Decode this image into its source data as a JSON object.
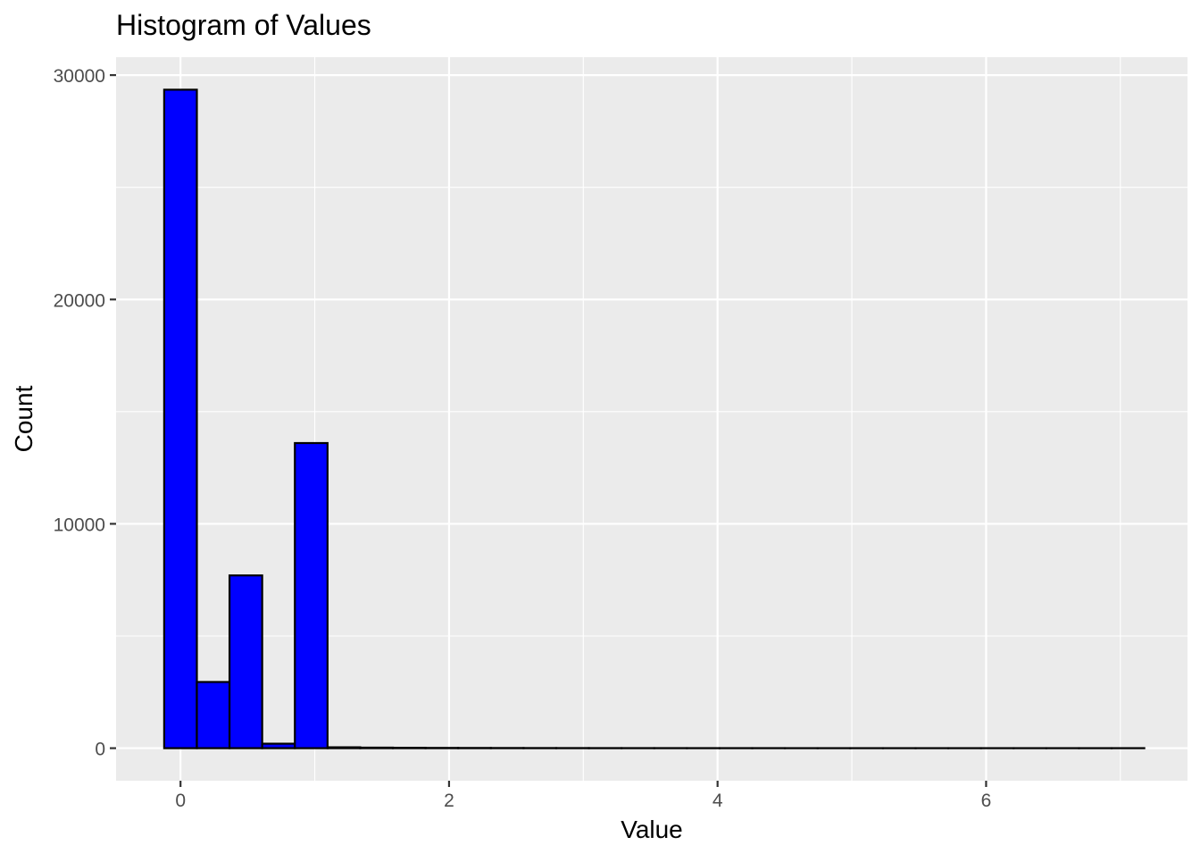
{
  "chart_data": {
    "type": "bar",
    "title": "Histogram of Values",
    "xlabel": "Value",
    "ylabel": "Count",
    "xlim": [
      -0.48,
      7.5
    ],
    "ylim": [
      -1450,
      30800
    ],
    "x_ticks": [
      0,
      2,
      4,
      6
    ],
    "y_ticks": [
      0,
      10000,
      20000,
      30000
    ],
    "grid": true,
    "bin_width": 0.2433,
    "bins": [
      {
        "x0": -0.1217,
        "x1": 0.1217,
        "count": 29350
      },
      {
        "x0": 0.1217,
        "x1": 0.365,
        "count": 2950
      },
      {
        "x0": 0.365,
        "x1": 0.6083,
        "count": 7700
      },
      {
        "x0": 0.6083,
        "x1": 0.8517,
        "count": 200
      },
      {
        "x0": 0.8517,
        "x1": 1.095,
        "count": 13600
      },
      {
        "x0": 1.095,
        "x1": 1.3383,
        "count": 40
      },
      {
        "x0": 1.3383,
        "x1": 1.5817,
        "count": 25
      },
      {
        "x0": 1.5817,
        "x1": 1.825,
        "count": 18
      },
      {
        "x0": 1.825,
        "x1": 2.0683,
        "count": 12
      },
      {
        "x0": 2.0683,
        "x1": 2.3117,
        "count": 10
      },
      {
        "x0": 2.3117,
        "x1": 2.555,
        "count": 8
      },
      {
        "x0": 2.555,
        "x1": 2.7983,
        "count": 6
      },
      {
        "x0": 2.7983,
        "x1": 3.0417,
        "count": 5
      },
      {
        "x0": 3.0417,
        "x1": 3.285,
        "count": 4
      },
      {
        "x0": 3.285,
        "x1": 3.5283,
        "count": 3
      },
      {
        "x0": 3.5283,
        "x1": 3.7717,
        "count": 3
      },
      {
        "x0": 3.7717,
        "x1": 4.015,
        "count": 2
      },
      {
        "x0": 4.015,
        "x1": 4.2583,
        "count": 2
      },
      {
        "x0": 4.2583,
        "x1": 4.5017,
        "count": 2
      },
      {
        "x0": 4.5017,
        "x1": 4.745,
        "count": 1
      },
      {
        "x0": 4.745,
        "x1": 4.9883,
        "count": 1
      },
      {
        "x0": 4.9883,
        "x1": 5.2317,
        "count": 1
      },
      {
        "x0": 5.2317,
        "x1": 5.475,
        "count": 1
      },
      {
        "x0": 5.475,
        "x1": 5.7183,
        "count": 1
      },
      {
        "x0": 5.7183,
        "x1": 5.9617,
        "count": 1
      },
      {
        "x0": 5.9617,
        "x1": 6.205,
        "count": 1
      },
      {
        "x0": 6.205,
        "x1": 6.4483,
        "count": 1
      },
      {
        "x0": 6.4483,
        "x1": 6.6917,
        "count": 1
      },
      {
        "x0": 6.6917,
        "x1": 6.935,
        "count": 1
      },
      {
        "x0": 6.935,
        "x1": 7.1783,
        "count": 1
      }
    ],
    "colors": {
      "bar_fill": "#0000ff",
      "bar_stroke": "#000000",
      "panel_background": "#ebebeb",
      "grid_line": "#ffffff",
      "tick_label": "#4d4d4d",
      "tick_mark": "#333333"
    }
  }
}
